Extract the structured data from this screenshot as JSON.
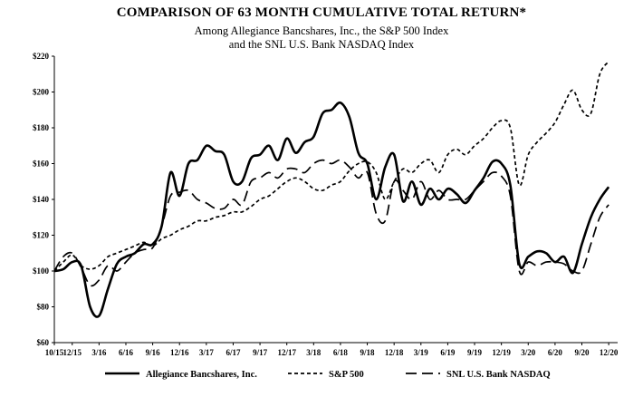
{
  "title": "COMPARISON OF 63 MONTH CUMULATIVE TOTAL RETURN*",
  "subtitle_line1": "Among Allegiance Bancshares, Inc., the S&P 500 Index",
  "subtitle_line2": "and the SNL U.S. Bank NASDAQ Index",
  "chart_data": {
    "type": "line",
    "xlim": [
      0,
      63
    ],
    "ylim": [
      60,
      220
    ],
    "y_ticks": [
      {
        "value": 60,
        "label": "$60"
      },
      {
        "value": 80,
        "label": "$80"
      },
      {
        "value": 100,
        "label": "$100"
      },
      {
        "value": 120,
        "label": "$120"
      },
      {
        "value": 140,
        "label": "$140"
      },
      {
        "value": 160,
        "label": "$160"
      },
      {
        "value": 180,
        "label": "$180"
      },
      {
        "value": 200,
        "label": "$200"
      },
      {
        "value": 220,
        "label": "$220"
      }
    ],
    "x_ticks": [
      {
        "value": 0,
        "label": "10/15"
      },
      {
        "value": 2,
        "label": "12/15"
      },
      {
        "value": 5,
        "label": "3/16"
      },
      {
        "value": 8,
        "label": "6/16"
      },
      {
        "value": 11,
        "label": "9/16"
      },
      {
        "value": 14,
        "label": "12/16"
      },
      {
        "value": 17,
        "label": "3/17"
      },
      {
        "value": 20,
        "label": "6/17"
      },
      {
        "value": 23,
        "label": "9/17"
      },
      {
        "value": 26,
        "label": "12/17"
      },
      {
        "value": 29,
        "label": "3/18"
      },
      {
        "value": 32,
        "label": "6/18"
      },
      {
        "value": 35,
        "label": "9/18"
      },
      {
        "value": 38,
        "label": "12/18"
      },
      {
        "value": 41,
        "label": "3/19"
      },
      {
        "value": 44,
        "label": "6/19"
      },
      {
        "value": 47,
        "label": "9/19"
      },
      {
        "value": 50,
        "label": "12/19"
      },
      {
        "value": 53,
        "label": "3/20"
      },
      {
        "value": 56,
        "label": "6/20"
      },
      {
        "value": 59,
        "label": "9/20"
      },
      {
        "value": 62,
        "label": "12/20"
      }
    ],
    "grid": false,
    "legend_position": "bottom",
    "series": [
      {
        "name": "Allegiance Bancshares, Inc.",
        "style": "solid",
        "color": "#000000",
        "points": [
          [
            0,
            100
          ],
          [
            1,
            101
          ],
          [
            2,
            105
          ],
          [
            3,
            103
          ],
          [
            4,
            80
          ],
          [
            5,
            75
          ],
          [
            6,
            90
          ],
          [
            7,
            104
          ],
          [
            8,
            108
          ],
          [
            9,
            110
          ],
          [
            10,
            115
          ],
          [
            11,
            115
          ],
          [
            12,
            125
          ],
          [
            13,
            155
          ],
          [
            14,
            142
          ],
          [
            15,
            160
          ],
          [
            16,
            162
          ],
          [
            17,
            170
          ],
          [
            18,
            167
          ],
          [
            19,
            165
          ],
          [
            20,
            150
          ],
          [
            21,
            150
          ],
          [
            22,
            163
          ],
          [
            23,
            165
          ],
          [
            24,
            170
          ],
          [
            25,
            162
          ],
          [
            26,
            174
          ],
          [
            27,
            166
          ],
          [
            28,
            172
          ],
          [
            29,
            175
          ],
          [
            30,
            188
          ],
          [
            31,
            190
          ],
          [
            32,
            194
          ],
          [
            33,
            186
          ],
          [
            34,
            166
          ],
          [
            35,
            160
          ],
          [
            36,
            140
          ],
          [
            37,
            158
          ],
          [
            38,
            165
          ],
          [
            39,
            139
          ],
          [
            40,
            150
          ],
          [
            41,
            137
          ],
          [
            42,
            146
          ],
          [
            43,
            140
          ],
          [
            44,
            146
          ],
          [
            45,
            143
          ],
          [
            46,
            138
          ],
          [
            47,
            145
          ],
          [
            48,
            152
          ],
          [
            49,
            161
          ],
          [
            50,
            160
          ],
          [
            51,
            148
          ],
          [
            52,
            104
          ],
          [
            53,
            108
          ],
          [
            54,
            111
          ],
          [
            55,
            110
          ],
          [
            56,
            105
          ],
          [
            57,
            108
          ],
          [
            58,
            99
          ],
          [
            59,
            115
          ],
          [
            60,
            130
          ],
          [
            61,
            140
          ],
          [
            62,
            147
          ]
        ]
      },
      {
        "name": "S&P 500",
        "style": "dotted",
        "color": "#000000",
        "points": [
          [
            0,
            100
          ],
          [
            1,
            105
          ],
          [
            2,
            109
          ],
          [
            3,
            103
          ],
          [
            4,
            101
          ],
          [
            5,
            103
          ],
          [
            6,
            108
          ],
          [
            7,
            110
          ],
          [
            8,
            112
          ],
          [
            9,
            114
          ],
          [
            10,
            116
          ],
          [
            11,
            114
          ],
          [
            12,
            118
          ],
          [
            13,
            120
          ],
          [
            14,
            123
          ],
          [
            15,
            125
          ],
          [
            16,
            128
          ],
          [
            17,
            128
          ],
          [
            18,
            130
          ],
          [
            19,
            131
          ],
          [
            20,
            133
          ],
          [
            21,
            133
          ],
          [
            22,
            136
          ],
          [
            23,
            140
          ],
          [
            24,
            142
          ],
          [
            25,
            146
          ],
          [
            26,
            150
          ],
          [
            27,
            152
          ],
          [
            28,
            150
          ],
          [
            29,
            146
          ],
          [
            30,
            145
          ],
          [
            31,
            148
          ],
          [
            32,
            150
          ],
          [
            33,
            156
          ],
          [
            34,
            160
          ],
          [
            35,
            161
          ],
          [
            36,
            155
          ],
          [
            37,
            140
          ],
          [
            38,
            150
          ],
          [
            39,
            157
          ],
          [
            40,
            155
          ],
          [
            41,
            160
          ],
          [
            42,
            162
          ],
          [
            43,
            155
          ],
          [
            44,
            165
          ],
          [
            45,
            168
          ],
          [
            46,
            165
          ],
          [
            47,
            170
          ],
          [
            48,
            174
          ],
          [
            49,
            180
          ],
          [
            50,
            184
          ],
          [
            51,
            180
          ],
          [
            52,
            148
          ],
          [
            53,
            165
          ],
          [
            54,
            172
          ],
          [
            55,
            177
          ],
          [
            56,
            183
          ],
          [
            57,
            193
          ],
          [
            58,
            201
          ],
          [
            59,
            190
          ],
          [
            60,
            188
          ],
          [
            61,
            210
          ],
          [
            62,
            217
          ]
        ]
      },
      {
        "name": "SNL U.S. Bank NASDAQ",
        "style": "dashed",
        "color": "#000000",
        "points": [
          [
            0,
            100
          ],
          [
            1,
            108
          ],
          [
            2,
            110
          ],
          [
            3,
            102
          ],
          [
            4,
            92
          ],
          [
            5,
            95
          ],
          [
            6,
            103
          ],
          [
            7,
            100
          ],
          [
            8,
            105
          ],
          [
            9,
            110
          ],
          [
            10,
            112
          ],
          [
            11,
            113
          ],
          [
            12,
            125
          ],
          [
            13,
            142
          ],
          [
            14,
            144
          ],
          [
            15,
            145
          ],
          [
            16,
            140
          ],
          [
            17,
            138
          ],
          [
            18,
            135
          ],
          [
            19,
            135
          ],
          [
            20,
            140
          ],
          [
            21,
            137
          ],
          [
            22,
            150
          ],
          [
            23,
            152
          ],
          [
            24,
            155
          ],
          [
            25,
            152
          ],
          [
            26,
            157
          ],
          [
            27,
            157
          ],
          [
            28,
            155
          ],
          [
            29,
            160
          ],
          [
            30,
            162
          ],
          [
            31,
            160
          ],
          [
            32,
            162
          ],
          [
            33,
            158
          ],
          [
            34,
            152
          ],
          [
            35,
            155
          ],
          [
            36,
            132
          ],
          [
            37,
            128
          ],
          [
            38,
            150
          ],
          [
            39,
            145
          ],
          [
            40,
            140
          ],
          [
            41,
            150
          ],
          [
            42,
            140
          ],
          [
            43,
            145
          ],
          [
            44,
            140
          ],
          [
            45,
            140
          ],
          [
            46,
            140
          ],
          [
            47,
            145
          ],
          [
            48,
            150
          ],
          [
            49,
            155
          ],
          [
            50,
            153
          ],
          [
            51,
            142
          ],
          [
            52,
            100
          ],
          [
            53,
            105
          ],
          [
            54,
            103
          ],
          [
            55,
            105
          ],
          [
            56,
            105
          ],
          [
            57,
            104
          ],
          [
            58,
            100
          ],
          [
            59,
            100
          ],
          [
            60,
            115
          ],
          [
            61,
            130
          ],
          [
            62,
            137
          ]
        ]
      }
    ]
  }
}
